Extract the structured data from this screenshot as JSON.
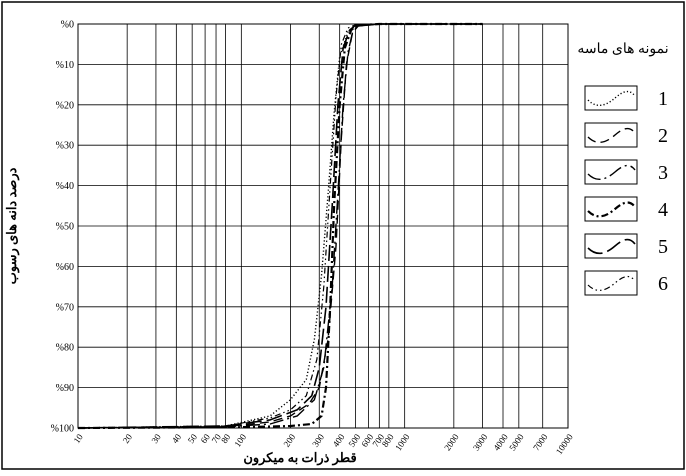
{
  "chart_data": {
    "type": "line",
    "title": "",
    "xlabel": "قطر ذرات به میکرون",
    "ylabel": "درصد دانه های رسوب",
    "x_scale": "log",
    "xlim": [
      10,
      10000
    ],
    "ylim": [
      0,
      100
    ],
    "y_inverted": true,
    "grid": true,
    "x_ticks": [
      10,
      20,
      30,
      40,
      50,
      60,
      70,
      80,
      100,
      200,
      300,
      400,
      500,
      600,
      700,
      800,
      1000,
      2000,
      3000,
      4000,
      5000,
      7000,
      10000
    ],
    "y_ticks": [
      0,
      10,
      20,
      30,
      40,
      50,
      60,
      70,
      80,
      90,
      100
    ],
    "y_tick_labels": [
      "%0",
      "%10",
      "%20",
      "%30",
      "%40",
      "%50",
      "%60",
      "%70",
      "%80",
      "%90",
      "%100"
    ],
    "legend_title": "نمونه های ماسه",
    "legend_position": "right",
    "series": [
      {
        "name": "1",
        "style": "dotted",
        "x": [
          10,
          80,
          150,
          200,
          250,
          280,
          310,
          340,
          370,
          400,
          450,
          500,
          700,
          1000,
          3000
        ],
        "y": [
          100,
          99.5,
          97,
          93,
          88,
          78,
          62,
          42,
          22,
          8,
          2,
          0.5,
          0,
          0,
          0
        ]
      },
      {
        "name": "2",
        "style": "dashed",
        "x": [
          10,
          80,
          150,
          200,
          260,
          300,
          340,
          380,
          410,
          440,
          480,
          520,
          700,
          1000,
          3000
        ],
        "y": [
          100,
          99.7,
          98.5,
          97,
          94,
          90,
          78,
          55,
          28,
          10,
          2,
          0.5,
          0,
          0,
          0
        ]
      },
      {
        "name": "3",
        "style": "dashdot-long",
        "x": [
          10,
          80,
          150,
          220,
          280,
          320,
          360,
          390,
          420,
          450,
          480,
          520,
          700,
          1000,
          3000
        ],
        "y": [
          100,
          99.7,
          99,
          97,
          93,
          85,
          65,
          42,
          20,
          7,
          2,
          0.5,
          0,
          0,
          0
        ]
      },
      {
        "name": "4",
        "style": "dashdot",
        "x": [
          10,
          100,
          200,
          270,
          310,
          330,
          350,
          370,
          400,
          430,
          470,
          520,
          700,
          1000,
          3000
        ],
        "y": [
          100,
          99.8,
          99.5,
          99,
          97,
          90,
          70,
          45,
          20,
          6,
          1.5,
          0.3,
          0,
          0,
          0
        ]
      },
      {
        "name": "5",
        "style": "longdash",
        "x": [
          10,
          80,
          150,
          220,
          270,
          300,
          330,
          360,
          390,
          420,
          460,
          500,
          700,
          1000,
          3000
        ],
        "y": [
          100,
          99.5,
          98,
          95.5,
          92,
          85,
          70,
          45,
          20,
          6,
          1.5,
          0.3,
          0,
          0,
          0
        ]
      },
      {
        "name": "6",
        "style": "dash-dot-dot",
        "x": [
          10,
          80,
          150,
          200,
          250,
          290,
          320,
          350,
          380,
          410,
          450,
          500,
          700,
          1000,
          3000
        ],
        "y": [
          100,
          99.5,
          97.5,
          95.5,
          92,
          83,
          65,
          40,
          18,
          5,
          1,
          0.2,
          0,
          0,
          0
        ]
      }
    ]
  }
}
